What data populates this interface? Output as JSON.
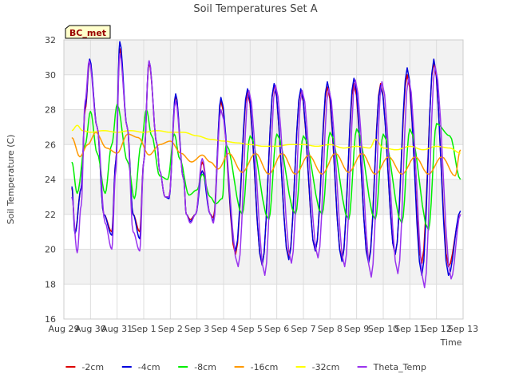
{
  "chart_data": {
    "type": "line",
    "title": "Soil Temperatures Set A",
    "xlabel": "Time",
    "ylabel": "Soil Temperature (C)",
    "ylim": [
      16,
      32
    ],
    "yticks": [
      16,
      18,
      20,
      22,
      24,
      26,
      28,
      30,
      32
    ],
    "xlim": [
      0,
      15
    ],
    "xticks": [
      {
        "x": 0,
        "label": "Aug 29"
      },
      {
        "x": 1,
        "label": "Aug 30"
      },
      {
        "x": 2,
        "label": "Aug 31"
      },
      {
        "x": 3,
        "label": "Sep 1"
      },
      {
        "x": 4,
        "label": "Sep 2"
      },
      {
        "x": 5,
        "label": "Sep 3"
      },
      {
        "x": 6,
        "label": "Sep 4"
      },
      {
        "x": 7,
        "label": "Sep 5"
      },
      {
        "x": 8,
        "label": "Sep 6"
      },
      {
        "x": 9,
        "label": "Sep 7"
      },
      {
        "x": 10,
        "label": "Sep 8"
      },
      {
        "x": 11,
        "label": "Sep 9"
      },
      {
        "x": 12,
        "label": "Sep 10"
      },
      {
        "x": 13,
        "label": "Sep 11"
      },
      {
        "x": 14,
        "label": "Sep 12"
      },
      {
        "x": 15,
        "label": "Sep 13"
      }
    ],
    "grid": true,
    "legend_position": "bottom",
    "site_label": "BC_met",
    "series": [
      {
        "name": "-2cm",
        "color": "#dd0000",
        "x": [
          0.3,
          0.42,
          0.65,
          0.8,
          0.97,
          1.25,
          1.5,
          1.8,
          1.95,
          2.1,
          2.38,
          2.6,
          2.85,
          3.0,
          3.2,
          3.5,
          3.6,
          3.8,
          3.95,
          4.2,
          4.5,
          4.6,
          4.75,
          4.95,
          5.2,
          5.5,
          5.62,
          5.9,
          6.45,
          6.9,
          7.45,
          7.9,
          8.45,
          8.9,
          9.45,
          9.9,
          10.45,
          10.9,
          11.45,
          11.9,
          12.45,
          12.9,
          13.45,
          13.9,
          14.45,
          14.9
        ],
        "y": [
          23.5,
          21.0,
          23.5,
          28.0,
          30.8,
          27.0,
          22.0,
          21.0,
          25.0,
          31.5,
          27.0,
          22.0,
          21.0,
          25.0,
          30.7,
          26.0,
          24.5,
          23.0,
          23.0,
          28.8,
          24.0,
          22.0,
          21.7,
          22.0,
          25.0,
          22.0,
          21.8,
          28.5,
          19.7,
          29.0,
          19.1,
          29.4,
          19.5,
          29.1,
          19.9,
          29.3,
          19.4,
          29.5,
          19.3,
          29.5,
          19.7,
          30.0,
          19.2,
          30.7,
          19.0,
          22.0
        ]
      },
      {
        "name": "-4cm",
        "color": "#0000dd",
        "x": [
          0.3,
          0.42,
          0.65,
          0.8,
          0.97,
          1.25,
          1.5,
          1.8,
          1.95,
          2.1,
          2.38,
          2.6,
          2.85,
          3.0,
          3.2,
          3.5,
          3.6,
          3.8,
          3.95,
          4.2,
          4.5,
          4.6,
          4.75,
          4.95,
          5.2,
          5.5,
          5.62,
          5.9,
          6.45,
          6.9,
          7.45,
          7.9,
          8.45,
          8.9,
          9.45,
          9.9,
          10.45,
          10.9,
          11.45,
          11.9,
          12.45,
          12.9,
          13.45,
          13.9,
          14.45,
          14.9
        ],
        "y": [
          23.6,
          20.9,
          23.5,
          28.2,
          30.9,
          27.0,
          22.0,
          20.8,
          25.0,
          31.9,
          27.0,
          22.0,
          20.6,
          25.0,
          30.8,
          26.0,
          24.5,
          23.0,
          22.9,
          28.9,
          24.0,
          22.0,
          21.6,
          22.0,
          24.5,
          22.0,
          21.6,
          28.7,
          19.9,
          29.2,
          19.1,
          29.5,
          19.4,
          29.2,
          19.9,
          29.6,
          19.3,
          29.8,
          19.2,
          29.4,
          19.7,
          30.4,
          18.5,
          30.9,
          18.5,
          22.2
        ]
      },
      {
        "name": "-8cm",
        "color": "#00ee00",
        "x": [
          0.3,
          0.5,
          0.8,
          1.0,
          1.25,
          1.55,
          1.8,
          2.0,
          2.4,
          2.65,
          2.9,
          3.1,
          3.3,
          3.6,
          3.9,
          4.15,
          4.35,
          4.7,
          5.0,
          5.2,
          5.5,
          5.7,
          5.95,
          6.1,
          6.7,
          7.0,
          7.7,
          8.0,
          8.7,
          9.0,
          9.7,
          10.0,
          10.7,
          11.0,
          11.7,
          12.0,
          12.7,
          13.0,
          13.7,
          14.0,
          14.5,
          14.9
        ],
        "y": [
          25.0,
          23.2,
          26.0,
          27.9,
          25.5,
          23.2,
          26.0,
          28.3,
          25.0,
          22.9,
          26.0,
          28.0,
          26.5,
          24.2,
          24.0,
          26.6,
          25.2,
          23.1,
          23.4,
          24.3,
          23.0,
          22.6,
          22.9,
          26.0,
          22.0,
          26.5,
          21.7,
          26.6,
          22.0,
          26.5,
          22.0,
          26.7,
          21.7,
          26.9,
          21.7,
          26.6,
          21.5,
          26.9,
          21.1,
          27.2,
          26.5,
          24.0
        ]
      },
      {
        "name": "-16cm",
        "color": "#ff9900",
        "x": [
          0.3,
          0.6,
          0.9,
          1.2,
          1.6,
          2.0,
          2.4,
          2.8,
          3.2,
          3.6,
          4.0,
          4.4,
          4.8,
          5.2,
          5.5,
          5.8,
          6.2,
          6.7,
          7.2,
          7.7,
          8.2,
          8.7,
          9.2,
          9.7,
          10.2,
          10.7,
          11.2,
          11.7,
          12.2,
          12.7,
          13.2,
          13.7,
          14.2,
          14.7,
          14.9
        ],
        "y": [
          26.4,
          25.3,
          26.0,
          26.7,
          25.8,
          25.5,
          26.6,
          26.4,
          25.4,
          26.0,
          26.2,
          25.5,
          25.0,
          25.4,
          25.0,
          24.6,
          25.5,
          24.4,
          25.5,
          24.3,
          25.5,
          24.3,
          25.4,
          24.3,
          25.5,
          24.4,
          25.5,
          24.3,
          25.3,
          24.3,
          25.3,
          24.3,
          25.3,
          24.2,
          25.7
        ]
      },
      {
        "name": "-32cm",
        "color": "#ffff00",
        "x": [
          0.3,
          0.5,
          0.7,
          1.0,
          1.5,
          2.0,
          2.5,
          3.0,
          3.5,
          4.0,
          4.5,
          5.0,
          5.5,
          6.0,
          6.5,
          7.0,
          7.5,
          8.0,
          8.5,
          9.0,
          9.5,
          10.0,
          10.5,
          11.0,
          11.5,
          11.7,
          12.0,
          12.5,
          13.0,
          13.5,
          14.0,
          14.5,
          14.9
        ],
        "y": [
          26.8,
          27.1,
          26.8,
          26.7,
          26.8,
          26.7,
          26.8,
          26.7,
          26.8,
          26.7,
          26.7,
          26.5,
          26.3,
          26.2,
          26.1,
          26.0,
          25.9,
          25.9,
          26.0,
          26.0,
          25.9,
          26.0,
          25.8,
          25.9,
          25.8,
          26.3,
          25.8,
          25.7,
          25.9,
          25.7,
          25.9,
          25.8,
          25.5
        ]
      },
      {
        "name": "Theta_Temp",
        "color": "#9933ee",
        "x": [
          0.3,
          0.5,
          0.65,
          0.8,
          0.95,
          1.25,
          1.55,
          1.8,
          1.95,
          2.1,
          2.38,
          2.6,
          2.85,
          3.0,
          3.2,
          3.5,
          3.6,
          3.8,
          3.95,
          4.2,
          4.5,
          4.6,
          4.75,
          4.95,
          5.2,
          5.5,
          5.62,
          5.9,
          6.55,
          6.95,
          7.55,
          7.95,
          8.55,
          8.95,
          9.55,
          9.95,
          10.55,
          10.95,
          11.55,
          11.95,
          12.55,
          12.95,
          13.55,
          13.95,
          14.55,
          14.9
        ],
        "y": [
          23.0,
          19.8,
          22.5,
          28.5,
          30.8,
          27.0,
          21.5,
          20.0,
          24.5,
          31.2,
          27.0,
          21.0,
          19.9,
          25.0,
          30.8,
          26.0,
          24.5,
          23.0,
          23.0,
          28.5,
          24.0,
          22.0,
          21.5,
          22.0,
          25.2,
          22.0,
          21.5,
          28.0,
          19.0,
          29.1,
          18.5,
          29.4,
          19.2,
          29.1,
          19.5,
          29.2,
          19.0,
          29.7,
          18.4,
          29.6,
          18.6,
          29.8,
          17.8,
          30.5,
          18.3,
          22.0
        ]
      }
    ]
  }
}
